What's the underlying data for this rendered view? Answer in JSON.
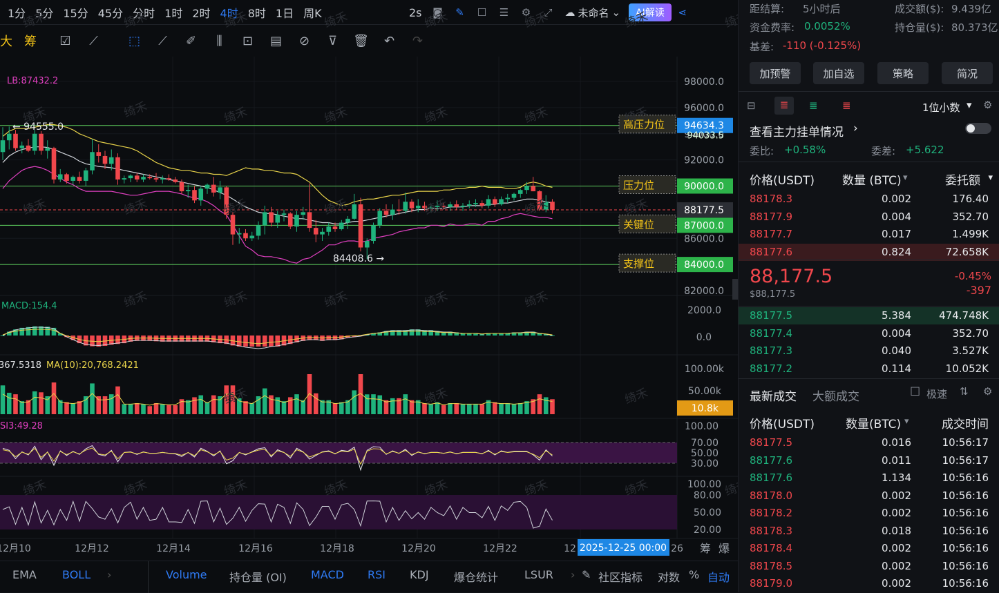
{
  "timeframes": [
    "1分",
    "5分",
    "15分",
    "45分",
    "分时",
    "1时",
    "2时",
    "4时",
    "8时",
    "1日",
    "周K"
  ],
  "active_timeframe": "4时",
  "toolbar": {
    "interval": "2s",
    "layout_name": "未命名",
    "ai_label": "AI解读"
  },
  "drawing_tools": [
    "大",
    "筹"
  ],
  "chart_data": {
    "type": "candlestick",
    "symbol_price": "88177.5",
    "y_ticks": [
      "98000.0",
      "96000.0",
      "94000.0",
      "92000.0",
      "90000.0",
      "88000.0",
      "86000.0",
      "84000.0",
      "82000.0"
    ],
    "x_ticks": [
      "12月10",
      "12月12",
      "12月14",
      "12月16",
      "12月18",
      "12月20",
      "12月22",
      "12",
      "26"
    ],
    "crosshair_date": "2025-12-25 00:00",
    "boll_label": "LB:87432.2",
    "high_label": "← 94555.0",
    "low_label": "84408.6 →",
    "levels": [
      {
        "label": "高压力位",
        "price": 94634.3,
        "price_text": "94634.3",
        "color": "#1e88e5"
      },
      {
        "label": "压力位",
        "price": 90000,
        "price_text": "90000.0",
        "color": "#2db34a"
      },
      {
        "label": "关键位",
        "price": 87000,
        "price_text": "87000.0",
        "color": "#2db34a"
      },
      {
        "label": "支撑位",
        "price": 84000,
        "price_text": "84000.0",
        "color": "#2db34a"
      }
    ],
    "current_price_tag": "88177.5",
    "hidden_tag": "94033.5",
    "candles": [
      [
        92600,
        94500,
        92000,
        93500
      ],
      [
        93500,
        94555,
        92800,
        94000
      ],
      [
        94000,
        94300,
        92700,
        92900
      ],
      [
        92900,
        93400,
        92500,
        93100
      ],
      [
        93100,
        93600,
        92600,
        92700
      ],
      [
        92700,
        94300,
        92400,
        94000
      ],
      [
        94000,
        94200,
        92400,
        92700
      ],
      [
        92700,
        93500,
        92100,
        92900
      ],
      [
        92900,
        93000,
        90200,
        90500
      ],
      [
        90500,
        91300,
        90300,
        90900
      ],
      [
        90900,
        91000,
        90200,
        90400
      ],
      [
        90400,
        90800,
        90100,
        90700
      ],
      [
        90700,
        91100,
        90200,
        90400
      ],
      [
        90400,
        91400,
        90000,
        91200
      ],
      [
        91200,
        93600,
        90900,
        92600
      ],
      [
        92600,
        93200,
        91800,
        92300
      ],
      [
        92300,
        92700,
        91300,
        91700
      ],
      [
        91700,
        92800,
        91200,
        92200
      ],
      [
        92200,
        92500,
        90100,
        90500
      ],
      [
        90500,
        90800,
        90200,
        90600
      ],
      [
        90600,
        90900,
        90300,
        90800
      ],
      [
        90800,
        91000,
        90300,
        90500
      ],
      [
        90500,
        90900,
        90300,
        90700
      ],
      [
        90700,
        90900,
        90500,
        90600
      ],
      [
        90600,
        91000,
        90300,
        90500
      ],
      [
        90500,
        90800,
        90200,
        90600
      ],
      [
        90600,
        90900,
        90400,
        90500
      ],
      [
        90500,
        90700,
        90200,
        90300
      ],
      [
        90300,
        90500,
        89400,
        89600
      ],
      [
        89600,
        90100,
        89100,
        89700
      ],
      [
        89700,
        90000,
        88700,
        88900
      ],
      [
        88900,
        90000,
        88500,
        89800
      ],
      [
        89800,
        90200,
        89400,
        90100
      ],
      [
        90100,
        90700,
        89200,
        89500
      ],
      [
        89500,
        90400,
        89000,
        89900
      ],
      [
        89900,
        90000,
        87500,
        87800
      ],
      [
        87800,
        88000,
        85500,
        86300
      ],
      [
        86300,
        86800,
        85600,
        86400
      ],
      [
        86400,
        86700,
        85800,
        86000
      ],
      [
        86000,
        86500,
        85800,
        86200
      ],
      [
        86200,
        87300,
        85900,
        87000
      ],
      [
        87000,
        88500,
        86300,
        88000
      ],
      [
        88000,
        88400,
        86900,
        87200
      ],
      [
        87200,
        88100,
        86800,
        87800
      ],
      [
        87800,
        88200,
        87300,
        87900
      ],
      [
        87900,
        88000,
        86700,
        86900
      ],
      [
        86900,
        88100,
        86500,
        87800
      ],
      [
        87800,
        88400,
        87400,
        88000
      ],
      [
        88000,
        90200,
        86500,
        86800
      ],
      [
        86800,
        87400,
        85700,
        86300
      ],
      [
        86300,
        86800,
        85800,
        86500
      ],
      [
        86500,
        87200,
        86200,
        86900
      ],
      [
        86900,
        87200,
        86500,
        86700
      ],
      [
        86700,
        87400,
        86600,
        87200
      ],
      [
        87200,
        87700,
        86700,
        87500
      ],
      [
        87500,
        89400,
        87400,
        88600
      ],
      [
        88600,
        89100,
        85000,
        85300
      ],
      [
        85300,
        86000,
        84409,
        85800
      ],
      [
        85800,
        87200,
        85600,
        87000
      ],
      [
        87000,
        88300,
        86800,
        88100
      ],
      [
        88100,
        88600,
        87600,
        87800
      ],
      [
        87800,
        88600,
        87400,
        88200
      ],
      [
        88200,
        89000,
        87800,
        88100
      ],
      [
        88100,
        89500,
        87900,
        88800
      ],
      [
        88800,
        89000,
        88000,
        88300
      ],
      [
        88300,
        89000,
        88000,
        88500
      ],
      [
        88500,
        88800,
        88100,
        88300
      ],
      [
        88300,
        88600,
        88000,
        88400
      ],
      [
        88400,
        88900,
        88100,
        88500
      ],
      [
        88500,
        88700,
        88200,
        88400
      ],
      [
        88400,
        88800,
        88100,
        88600
      ],
      [
        88600,
        88900,
        88200,
        88400
      ],
      [
        88400,
        88700,
        88100,
        88500
      ],
      [
        88500,
        88900,
        88300,
        88600
      ],
      [
        88600,
        89000,
        88400,
        88700
      ],
      [
        88700,
        88900,
        88300,
        88500
      ],
      [
        88500,
        89300,
        88300,
        89000
      ],
      [
        89000,
        89200,
        88400,
        88600
      ],
      [
        88600,
        89200,
        88500,
        89000
      ],
      [
        89000,
        89400,
        88700,
        89100
      ],
      [
        89100,
        89500,
        88900,
        89400
      ],
      [
        89400,
        89800,
        89100,
        89700
      ],
      [
        89700,
        90300,
        89400,
        90000
      ],
      [
        90000,
        90700,
        89600,
        89600
      ],
      [
        89600,
        89700,
        88100,
        88200
      ],
      [
        88200,
        89300,
        88000,
        88800
      ],
      [
        88800,
        89000,
        87900,
        88177.5
      ]
    ],
    "boll_mid": [
      91800,
      92300,
      92600,
      92800,
      92900,
      93000,
      93000,
      92950,
      92800,
      92600,
      92400,
      92200,
      91900,
      91700,
      91600,
      91500,
      91450,
      91400,
      91300,
      91200,
      91100,
      91000,
      90900,
      90800,
      90700,
      90600,
      90500,
      90400,
      90300,
      90200,
      90100,
      90000,
      89900,
      89700,
      89500,
      89300,
      89000,
      88700,
      88400,
      88200,
      88000,
      87900,
      87900,
      87800,
      87700,
      87600,
      87500,
      87500,
      87400,
      87300,
      87200,
      87200,
      87100,
      87100,
      87200,
      87300,
      87300,
      87400,
      87500,
      87600,
      87700,
      87800,
      87900,
      88000,
      88100,
      88200,
      88200,
      88300,
      88300,
      88300,
      88400,
      88400,
      88400,
      88500,
      88500,
      88500,
      88600,
      88600,
      88700,
      88700,
      88800,
      88900,
      89000,
      89000,
      88900,
      88800,
      88700
    ],
    "boll_up": [
      93800,
      94200,
      94400,
      94400,
      94400,
      94500,
      94600,
      94700,
      94700,
      94600,
      94500,
      94300,
      94000,
      93800,
      93600,
      93400,
      93300,
      93200,
      93100,
      93000,
      92900,
      92700,
      92400,
      92100,
      91800,
      91600,
      91400,
      91300,
      91200,
      91200,
      91100,
      91000,
      91000,
      90900,
      90900,
      90800,
      91000,
      91200,
      91400,
      91300,
      91300,
      91200,
      91200,
      91100,
      91000,
      91000,
      90900,
      90600,
      90300,
      89800,
      89300,
      88900,
      88700,
      88500,
      88600,
      88800,
      88900,
      89000,
      89000,
      89100,
      89200,
      89300,
      89300,
      89400,
      89500,
      89600,
      89600,
      89600,
      89600,
      89700,
      89700,
      89800,
      89800,
      89900,
      89900,
      90000,
      89900,
      89900,
      89900,
      89800,
      89800,
      89900,
      90200,
      90300,
      90200,
      90000,
      89900
    ],
    "boll_lo": [
      89800,
      90400,
      90800,
      91200,
      91400,
      91500,
      91400,
      91200,
      90900,
      90600,
      90300,
      90100,
      89800,
      89600,
      89600,
      89600,
      89600,
      89600,
      89500,
      89400,
      89300,
      89300,
      89400,
      89500,
      89600,
      89600,
      89600,
      89500,
      89400,
      89200,
      89100,
      89000,
      88800,
      88500,
      88100,
      87800,
      87000,
      86200,
      85400,
      85100,
      84700,
      84600,
      84600,
      84500,
      84400,
      84200,
      84100,
      84400,
      84500,
      84800,
      85100,
      85500,
      85500,
      85700,
      85800,
      85800,
      85700,
      85800,
      86000,
      86100,
      86200,
      86300,
      86500,
      86600,
      86700,
      86800,
      86800,
      87000,
      87000,
      86900,
      87100,
      87000,
      87000,
      87100,
      87100,
      87000,
      87300,
      87300,
      87500,
      87600,
      87800,
      87900,
      87800,
      87700,
      87600,
      87600,
      87500
    ],
    "macd_label": "MACD:154.4",
    "macd_ticks": [
      "2000.0",
      "0.0"
    ],
    "volume_label": "367.5318",
    "volume_ma_label": "MA(10):20,768.2421",
    "volume_ticks": [
      "100.00k",
      "50.00k"
    ],
    "volume_tag": "10.8k",
    "rsi_label": "SI3:49.28",
    "rsi_ticks": [
      "100.00",
      "70.00",
      "50.00",
      "30.00"
    ],
    "osc_ticks": [
      "100.00",
      "80.00",
      "50.00",
      "20.00"
    ]
  },
  "indicator_bar": {
    "main": [
      "EMA",
      "BOLL"
    ],
    "sub": [
      "Volume",
      "持仓量 (OI)",
      "MACD",
      "RSI",
      "KDJ",
      "爆仓统计",
      "LSUR"
    ],
    "community": "社区指标",
    "log": "对数",
    "percent": "%",
    "auto": "自动",
    "right_icons": [
      "筹",
      "爆"
    ]
  },
  "watermark": "绮禾",
  "stats": {
    "settle_label": "距结算:",
    "settle_value": "5小时后",
    "turnover_label": "成交额($):",
    "turnover_value": "9.439亿",
    "funding_label": "资金费率:",
    "funding_value": "0.0052%",
    "oi_label": "持仓量($):",
    "oi_value": "80.373亿",
    "basis_label": "基差:",
    "basis_value": "-110 (-0.125%)"
  },
  "buttons": [
    "加预警",
    "加自选",
    "策略",
    "简况"
  ],
  "orderbook": {
    "precision": "1位小数",
    "depth_link": "查看主力挂单情况",
    "ratio_label": "委比:",
    "ratio_value": "+0.58%",
    "diff_label": "委差:",
    "diff_value": "+5.622",
    "headers": [
      "价格(USDT)",
      "数量 (BTC)",
      "委托额"
    ],
    "asks": [
      [
        "88178.3",
        "0.002",
        "176.40"
      ],
      [
        "88177.9",
        "0.004",
        "352.70"
      ],
      [
        "88177.7",
        "0.017",
        "1.499K"
      ],
      [
        "88177.6",
        "0.824",
        "72.658K"
      ]
    ],
    "last_price": "88,177.5",
    "last_usd": "$88,177.5",
    "change_pct": "-0.45%",
    "change_abs": "-397",
    "bids": [
      [
        "88177.5",
        "5.384",
        "474.748K"
      ],
      [
        "88177.4",
        "0.004",
        "352.70"
      ],
      [
        "88177.3",
        "0.040",
        "3.527K"
      ],
      [
        "88177.2",
        "0.114",
        "10.052K"
      ]
    ]
  },
  "trades": {
    "tab_latest": "最新成交",
    "tab_large": "大额成交",
    "fast": "极速",
    "headers": [
      "价格(USDT)",
      "数量(BTC)",
      "成交时间"
    ],
    "rows": [
      [
        "88177.5",
        "0.016",
        "10:56:17",
        "red"
      ],
      [
        "88177.6",
        "0.011",
        "10:56:17",
        "green"
      ],
      [
        "88177.6",
        "1.134",
        "10:56:16",
        "green"
      ],
      [
        "88178.0",
        "0.002",
        "10:56:16",
        "red"
      ],
      [
        "88178.2",
        "0.002",
        "10:56:16",
        "red"
      ],
      [
        "88178.3",
        "0.018",
        "10:56:16",
        "red"
      ],
      [
        "88178.4",
        "0.002",
        "10:56:16",
        "red"
      ],
      [
        "88178.5",
        "0.002",
        "10:56:16",
        "red"
      ],
      [
        "88179.0",
        "0.002",
        "10:56:16",
        "red"
      ]
    ]
  }
}
